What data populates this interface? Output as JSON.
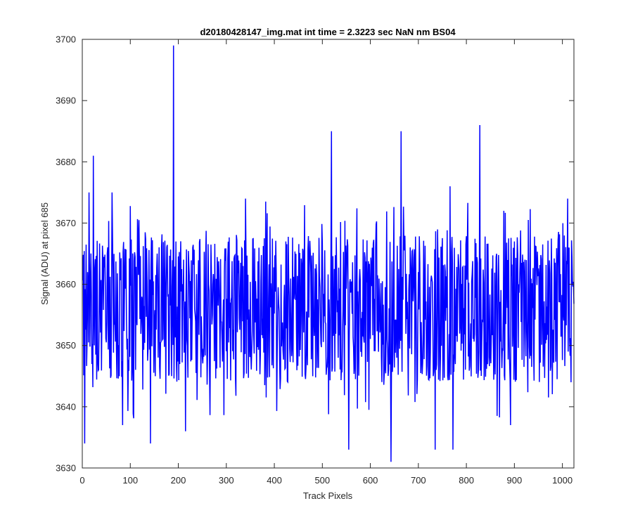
{
  "chart_data": {
    "type": "line",
    "title": "d20180428147_img.mat int time = 2.3223 sec  NaN nm BS04",
    "xlabel": "Track Pixels",
    "ylabel": "Signal (ADU) at pixel 685",
    "xlim": [
      0,
      1024
    ],
    "ylim": [
      3630,
      3700
    ],
    "xticks": [
      0,
      100,
      200,
      300,
      400,
      500,
      600,
      700,
      800,
      900,
      1000
    ],
    "yticks": [
      3630,
      3640,
      3650,
      3660,
      3670,
      3680,
      3690,
      3700
    ],
    "grid": false,
    "box": true,
    "line_color": "#0000ff",
    "series": [
      {
        "n_points": 1024,
        "x_start": 1,
        "x_end": 1024,
        "baseline": 3656,
        "noise_range": [
          3644,
          3668
        ],
        "peaks": [
          {
            "x": 5,
            "y": 3634
          },
          {
            "x": 14,
            "y": 3675
          },
          {
            "x": 23,
            "y": 3681
          },
          {
            "x": 62,
            "y": 3675
          },
          {
            "x": 84,
            "y": 3637
          },
          {
            "x": 142,
            "y": 3634
          },
          {
            "x": 190,
            "y": 3699
          },
          {
            "x": 215,
            "y": 3636
          },
          {
            "x": 340,
            "y": 3674
          },
          {
            "x": 519,
            "y": 3685
          },
          {
            "x": 555,
            "y": 3633
          },
          {
            "x": 643,
            "y": 3631
          },
          {
            "x": 664,
            "y": 3685
          },
          {
            "x": 735,
            "y": 3633
          },
          {
            "x": 766,
            "y": 3676
          },
          {
            "x": 772,
            "y": 3633
          },
          {
            "x": 828,
            "y": 3686
          },
          {
            "x": 878,
            "y": 3672
          },
          {
            "x": 892,
            "y": 3637
          },
          {
            "x": 1011,
            "y": 3674
          },
          {
            "x": 1018,
            "y": 3644
          }
        ]
      }
    ]
  }
}
